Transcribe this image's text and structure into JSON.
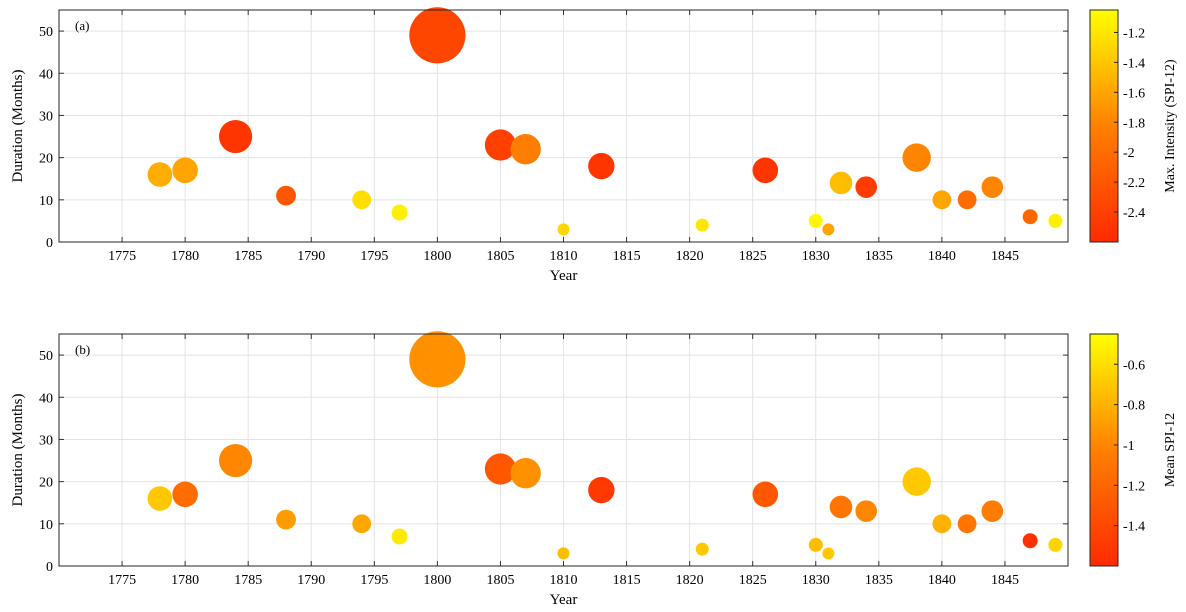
{
  "chart_data": [
    {
      "type": "scatter",
      "panel_label": "(a)",
      "xlabel": "Year",
      "ylabel": "Duration (Months)",
      "xlim": [
        1770,
        1850
      ],
      "ylim": [
        0,
        55
      ],
      "xticks": [
        1775,
        1780,
        1785,
        1790,
        1795,
        1800,
        1805,
        1810,
        1815,
        1820,
        1825,
        1830,
        1835,
        1840,
        1845
      ],
      "yticks": [
        0,
        10,
        20,
        30,
        40,
        50
      ],
      "grid": true,
      "marker_size_encodes": "Duration (Months)",
      "colorbar": {
        "label": "Max. Intensity (SPI-12)",
        "range": [
          -2.6,
          -1.05
        ],
        "ticks": [
          -2.4,
          -2.2,
          -2,
          -1.8,
          -1.6,
          -1.4,
          -1.2
        ],
        "colormap": [
          "#ff2a00",
          "#ff8000",
          "#ffff00"
        ]
      },
      "points": [
        {
          "x": 1778,
          "y": 16,
          "c": -1.55
        },
        {
          "x": 1780,
          "y": 17,
          "c": -1.6
        },
        {
          "x": 1784,
          "y": 25,
          "c": -2.5
        },
        {
          "x": 1788,
          "y": 11,
          "c": -2.2
        },
        {
          "x": 1794,
          "y": 10,
          "c": -1.25
        },
        {
          "x": 1797,
          "y": 7,
          "c": -1.15
        },
        {
          "x": 1800,
          "y": 49,
          "c": -2.35
        },
        {
          "x": 1805,
          "y": 23,
          "c": -2.4
        },
        {
          "x": 1807,
          "y": 22,
          "c": -1.85
        },
        {
          "x": 1810,
          "y": 3,
          "c": -1.3
        },
        {
          "x": 1813,
          "y": 18,
          "c": -2.5
        },
        {
          "x": 1821,
          "y": 4,
          "c": -1.2
        },
        {
          "x": 1826,
          "y": 17,
          "c": -2.5
        },
        {
          "x": 1830,
          "y": 5,
          "c": -1.1
        },
        {
          "x": 1831,
          "y": 3,
          "c": -1.6
        },
        {
          "x": 1832,
          "y": 14,
          "c": -1.45
        },
        {
          "x": 1834,
          "y": 13,
          "c": -2.45
        },
        {
          "x": 1838,
          "y": 20,
          "c": -1.8
        },
        {
          "x": 1840,
          "y": 10,
          "c": -1.6
        },
        {
          "x": 1842,
          "y": 10,
          "c": -2.0
        },
        {
          "x": 1844,
          "y": 13,
          "c": -1.8
        },
        {
          "x": 1847,
          "y": 6,
          "c": -2.05
        },
        {
          "x": 1849,
          "y": 5,
          "c": -1.15
        }
      ]
    },
    {
      "type": "scatter",
      "panel_label": "(b)",
      "xlabel": "Year",
      "ylabel": "Duration (Months)",
      "xlim": [
        1770,
        1850
      ],
      "ylim": [
        0,
        55
      ],
      "xticks": [
        1775,
        1780,
        1785,
        1790,
        1795,
        1800,
        1805,
        1810,
        1815,
        1820,
        1825,
        1830,
        1835,
        1840,
        1845
      ],
      "yticks": [
        0,
        10,
        20,
        30,
        40,
        50
      ],
      "grid": true,
      "marker_size_encodes": "Duration (Months)",
      "colorbar": {
        "label": "Mean SPI-12",
        "range": [
          -1.6,
          -0.45
        ],
        "ticks": [
          -1.4,
          -1.2,
          -1,
          -0.8,
          -0.6
        ],
        "colormap": [
          "#ff2a00",
          "#ff8000",
          "#ffff00"
        ]
      },
      "points": [
        {
          "x": 1778,
          "y": 16,
          "c": -0.7
        },
        {
          "x": 1780,
          "y": 17,
          "c": -1.15
        },
        {
          "x": 1784,
          "y": 25,
          "c": -1.0
        },
        {
          "x": 1788,
          "y": 11,
          "c": -0.9
        },
        {
          "x": 1794,
          "y": 10,
          "c": -0.85
        },
        {
          "x": 1797,
          "y": 7,
          "c": -0.55
        },
        {
          "x": 1800,
          "y": 49,
          "c": -0.95
        },
        {
          "x": 1805,
          "y": 23,
          "c": -1.3
        },
        {
          "x": 1807,
          "y": 22,
          "c": -0.95
        },
        {
          "x": 1810,
          "y": 3,
          "c": -0.75
        },
        {
          "x": 1813,
          "y": 18,
          "c": -1.5
        },
        {
          "x": 1821,
          "y": 4,
          "c": -0.7
        },
        {
          "x": 1826,
          "y": 17,
          "c": -1.3
        },
        {
          "x": 1830,
          "y": 5,
          "c": -0.75
        },
        {
          "x": 1831,
          "y": 3,
          "c": -0.7
        },
        {
          "x": 1832,
          "y": 14,
          "c": -1.1
        },
        {
          "x": 1834,
          "y": 13,
          "c": -1.0
        },
        {
          "x": 1838,
          "y": 20,
          "c": -0.7
        },
        {
          "x": 1840,
          "y": 10,
          "c": -0.8
        },
        {
          "x": 1842,
          "y": 10,
          "c": -1.1
        },
        {
          "x": 1844,
          "y": 13,
          "c": -1.05
        },
        {
          "x": 1847,
          "y": 6,
          "c": -1.55
        },
        {
          "x": 1849,
          "y": 5,
          "c": -0.65
        }
      ]
    }
  ]
}
